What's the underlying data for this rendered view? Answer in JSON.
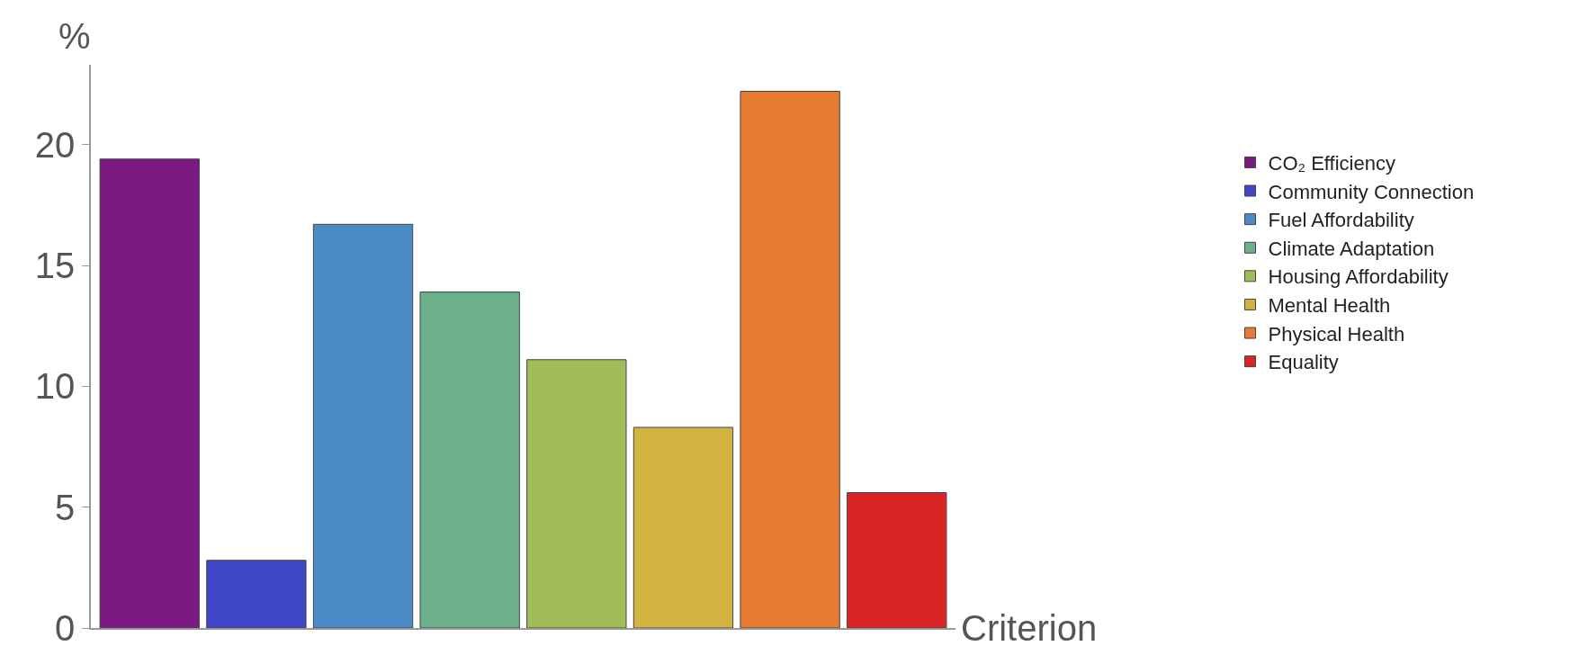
{
  "chart_data": {
    "type": "bar",
    "xlabel": "Criterion",
    "ylabel": "%",
    "categories": [
      null,
      null,
      null,
      null,
      null,
      null,
      null,
      null
    ],
    "series": [
      {
        "name": "CO₂ Efficiency",
        "color": "#7a1a82",
        "values": [
          19.4,
          null,
          null,
          null,
          null,
          null,
          null,
          null
        ]
      },
      {
        "name": "Community Connection",
        "color": "#3f46c8",
        "values": [
          null,
          2.8,
          null,
          null,
          null,
          null,
          null,
          null
        ]
      },
      {
        "name": "Fuel Affordability",
        "color": "#4a8bc6",
        "values": [
          null,
          null,
          16.7,
          null,
          null,
          null,
          null,
          null
        ]
      },
      {
        "name": "Climate Adaptation",
        "color": "#6bb08a",
        "values": [
          null,
          null,
          null,
          13.9,
          null,
          null,
          null,
          null
        ]
      },
      {
        "name": "Housing Affordability",
        "color": "#a1bd5a",
        "values": [
          null,
          null,
          null,
          null,
          11.1,
          null,
          null,
          null
        ]
      },
      {
        "name": "Mental Health",
        "color": "#d2b33f",
        "values": [
          null,
          null,
          null,
          null,
          null,
          8.3,
          null,
          null
        ]
      },
      {
        "name": "Physical Health",
        "color": "#e67c33",
        "values": [
          null,
          null,
          null,
          null,
          null,
          null,
          22.2,
          null
        ]
      },
      {
        "name": "Equality",
        "color": "#db2425",
        "values": [
          null,
          null,
          null,
          null,
          null,
          null,
          null,
          5.6
        ]
      }
    ],
    "ylim": [
      0,
      23.3
    ],
    "yticks": [
      0,
      5,
      10,
      15,
      20
    ],
    "grid": false,
    "legend": "right",
    "tick_labels": "y"
  }
}
